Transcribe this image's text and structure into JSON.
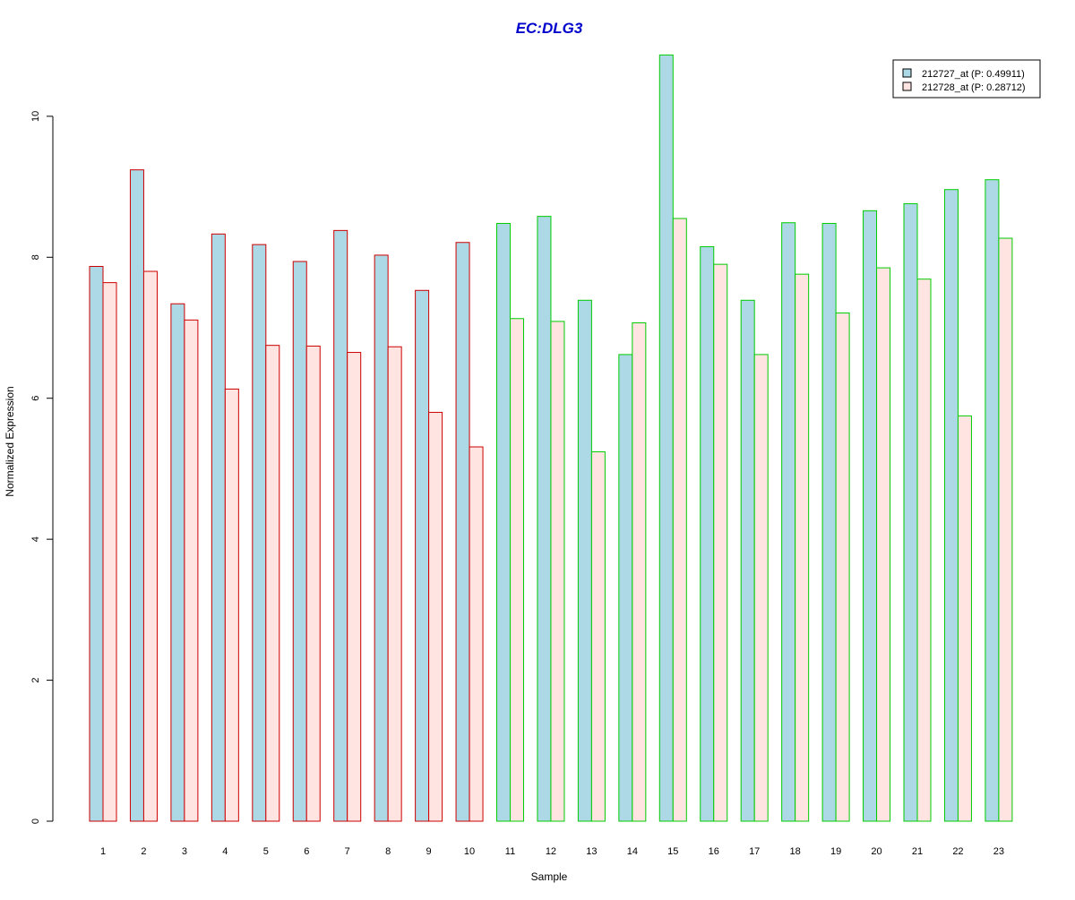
{
  "chart_data": {
    "type": "bar",
    "title": "EC:DLG3",
    "xlabel": "Sample",
    "ylabel": "Normalized Expression",
    "ylim": [
      0,
      10.9
    ],
    "yticks": [
      0,
      2,
      4,
      6,
      8,
      10
    ],
    "grid": false,
    "legend_position": "top-right",
    "categories": [
      "1",
      "2",
      "3",
      "4",
      "5",
      "6",
      "7",
      "8",
      "9",
      "10",
      "11",
      "12",
      "13",
      "14",
      "15",
      "16",
      "17",
      "18",
      "19",
      "20",
      "21",
      "22",
      "23"
    ],
    "series": [
      {
        "name": "212727_at (P: 0.49911)",
        "fill": "#add8e6",
        "values": [
          7.87,
          9.24,
          7.34,
          8.33,
          8.18,
          7.94,
          8.38,
          8.03,
          7.53,
          8.21,
          8.48,
          8.58,
          7.39,
          6.62,
          10.87,
          8.15,
          7.39,
          8.49,
          8.48,
          8.66,
          8.76,
          8.96,
          9.1
        ]
      },
      {
        "name": "212728_at (P: 0.28712)",
        "fill": "#ffe4e1",
        "values": [
          7.64,
          7.8,
          7.11,
          6.13,
          6.75,
          6.74,
          6.65,
          6.73,
          5.8,
          5.31,
          7.13,
          7.09,
          5.24,
          7.07,
          8.55,
          7.9,
          6.62,
          7.76,
          7.21,
          7.85,
          7.69,
          5.75,
          8.27
        ]
      }
    ],
    "group_border_colors": [
      "#cc0000",
      "#cc0000",
      "#cc0000",
      "#cc0000",
      "#cc0000",
      "#cc0000",
      "#cc0000",
      "#cc0000",
      "#cc0000",
      "#cc0000",
      "#00cc00",
      "#00cc00",
      "#00cc00",
      "#00cc00",
      "#00cc00",
      "#00cc00",
      "#00cc00",
      "#00cc00",
      "#00cc00",
      "#00cc00",
      "#00cc00",
      "#00cc00",
      "#00cc00"
    ],
    "colors": {
      "title": "#0000cc",
      "axis": "#000000",
      "background": "#ffffff"
    }
  }
}
